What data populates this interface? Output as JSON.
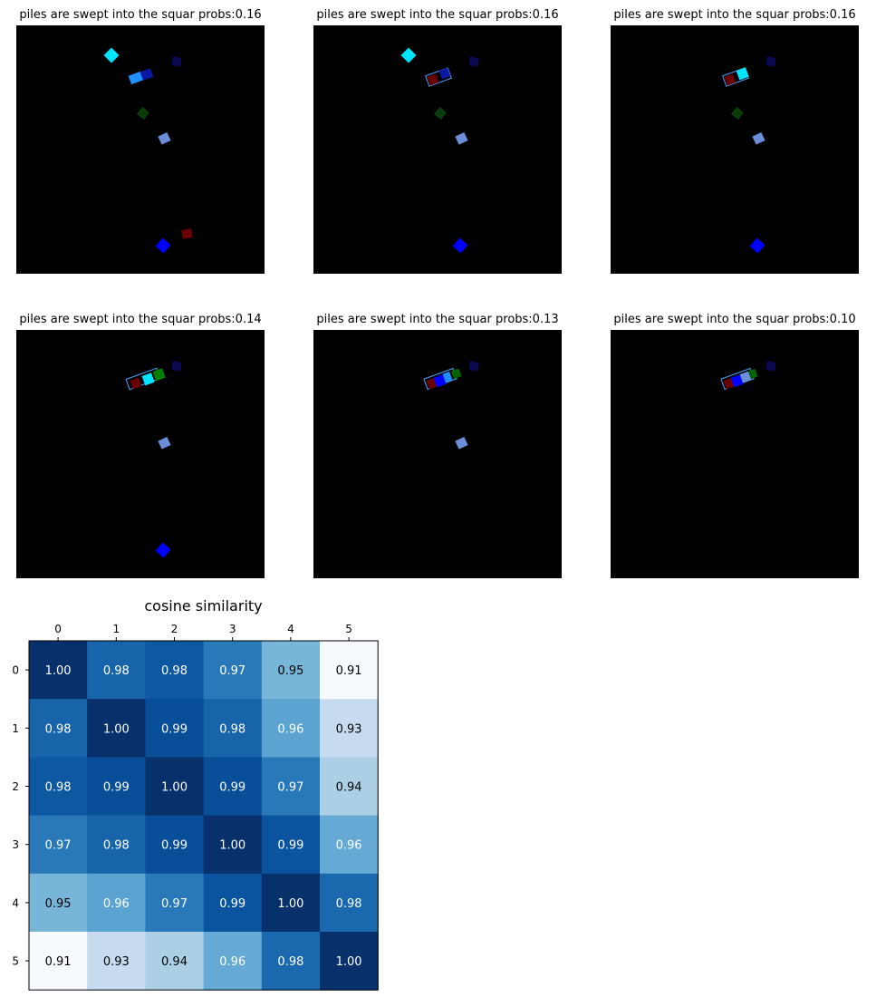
{
  "panels": [
    {
      "title": "piles are swept into the squar probs:0.16"
    },
    {
      "title": "piles are swept into the squar probs:0.16"
    },
    {
      "title": "piles are swept into the squar probs:0.16"
    },
    {
      "title": "piles are swept into the squar probs:0.14"
    },
    {
      "title": "piles are swept into the squar probs:0.13"
    },
    {
      "title": "piles are swept into the squar probs:0.10"
    }
  ],
  "chart_data": [
    {
      "type": "heatmap",
      "title": "cosine similarity",
      "x_ticks": [
        "0",
        "1",
        "2",
        "3",
        "4",
        "5"
      ],
      "y_ticks": [
        "0",
        "1",
        "2",
        "3",
        "4",
        "5"
      ],
      "colormap": "Blues",
      "values": [
        [
          1.0,
          0.98,
          0.98,
          0.97,
          0.95,
          0.91
        ],
        [
          0.98,
          1.0,
          0.99,
          0.98,
          0.96,
          0.93
        ],
        [
          0.98,
          0.99,
          1.0,
          0.99,
          0.97,
          0.94
        ],
        [
          0.97,
          0.98,
          0.99,
          1.0,
          0.99,
          0.96
        ],
        [
          0.95,
          0.96,
          0.97,
          0.99,
          1.0,
          0.98
        ],
        [
          0.91,
          0.93,
          0.94,
          0.96,
          0.98,
          1.0
        ]
      ],
      "cell_labels": [
        [
          "1.00",
          "0.98",
          "0.98",
          "0.97",
          "0.95",
          "0.91"
        ],
        [
          "0.98",
          "1.00",
          "0.99",
          "0.98",
          "0.96",
          "0.93"
        ],
        [
          "0.98",
          "0.99",
          "1.00",
          "0.99",
          "0.97",
          "0.94"
        ],
        [
          "0.97",
          "0.98",
          "0.99",
          "1.00",
          "0.99",
          "0.96"
        ],
        [
          "0.95",
          "0.96",
          "0.97",
          "0.99",
          "1.00",
          "0.98"
        ],
        [
          "0.91",
          "0.93",
          "0.94",
          "0.96",
          "0.98",
          "1.00"
        ]
      ],
      "cell_colors": [
        [
          "#08306b",
          "#1764ab",
          "#0e58a2",
          "#2979b9",
          "#77b5d9",
          "#f7fbff"
        ],
        [
          "#1764ab",
          "#08306b",
          "#084e98",
          "#1764ab",
          "#5ba3d0",
          "#c6dbef"
        ],
        [
          "#0e58a2",
          "#084e98",
          "#08306b",
          "#084e98",
          "#2979b9",
          "#abd0e6"
        ],
        [
          "#2979b9",
          "#1764ab",
          "#084e98",
          "#08306b",
          "#0a539e",
          "#65aad4"
        ],
        [
          "#77b5d9",
          "#5ba3d0",
          "#2979b9",
          "#0a539e",
          "#08306b",
          "#1a68ae"
        ],
        [
          "#f7fbff",
          "#c6dbef",
          "#abd0e6",
          "#65aad4",
          "#1a68ae",
          "#08306b"
        ]
      ],
      "label_colors": [
        [
          "#ffffff",
          "#ffffff",
          "#ffffff",
          "#ffffff",
          "#000000",
          "#000000"
        ],
        [
          "#ffffff",
          "#ffffff",
          "#ffffff",
          "#ffffff",
          "#ffffff",
          "#000000"
        ],
        [
          "#ffffff",
          "#ffffff",
          "#ffffff",
          "#ffffff",
          "#ffffff",
          "#000000"
        ],
        [
          "#ffffff",
          "#ffffff",
          "#ffffff",
          "#ffffff",
          "#ffffff",
          "#ffffff"
        ],
        [
          "#000000",
          "#ffffff",
          "#ffffff",
          "#ffffff",
          "#ffffff",
          "#ffffff"
        ],
        [
          "#000000",
          "#000000",
          "#000000",
          "#ffffff",
          "#ffffff",
          "#ffffff"
        ]
      ]
    }
  ]
}
